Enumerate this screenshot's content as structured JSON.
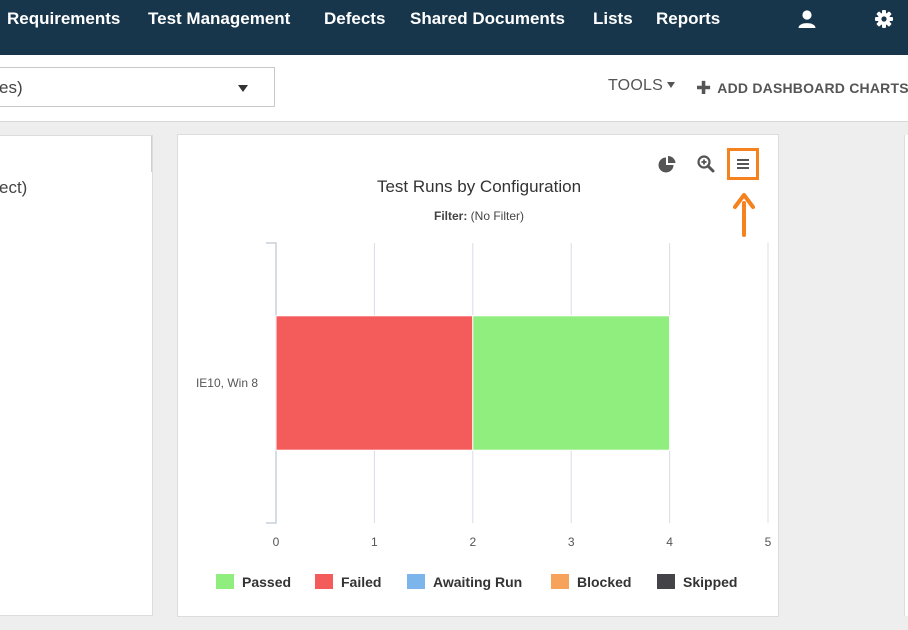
{
  "nav": {
    "items": [
      "Requirements",
      "Test Management",
      "Defects",
      "Shared Documents",
      "Lists",
      "Reports"
    ],
    "user_icon": "user-icon",
    "settings_icon": "gear-icon",
    "background": "#17354b"
  },
  "toolbar": {
    "select_value": "es)",
    "tools_label": "TOOLS",
    "add_label": "ADD DASHBOARD CHARTS"
  },
  "left_panel": {
    "text": "ect)"
  },
  "chart_panel": {
    "title": "Test Runs by Configuration",
    "filter_label": "Filter:",
    "filter_value": "(No Filter)",
    "icons": [
      "pie-chart-icon",
      "zoom-in-icon",
      "menu-icon"
    ],
    "highlight_color": "#f5821f"
  },
  "chart_data": {
    "type": "bar",
    "orientation": "horizontal",
    "stacked": true,
    "categories": [
      "IE10, Win 8"
    ],
    "series": [
      {
        "name": "Passed",
        "values": [
          2
        ],
        "color": "#90ee7e"
      },
      {
        "name": "Failed",
        "values": [
          2
        ],
        "color": "#f45b5b"
      },
      {
        "name": "Awaiting Run",
        "values": [
          0
        ],
        "color": "#7cb5ec"
      },
      {
        "name": "Blocked",
        "values": [
          0
        ],
        "color": "#f7a35c"
      },
      {
        "name": "Skipped",
        "values": [
          0
        ],
        "color": "#434348"
      }
    ],
    "stack_order": [
      "Failed",
      "Passed"
    ],
    "x_ticks": [
      "0",
      "1",
      "2",
      "3",
      "4",
      "5"
    ],
    "xlim": [
      0,
      5
    ],
    "grid": true,
    "legend_position": "bottom"
  }
}
